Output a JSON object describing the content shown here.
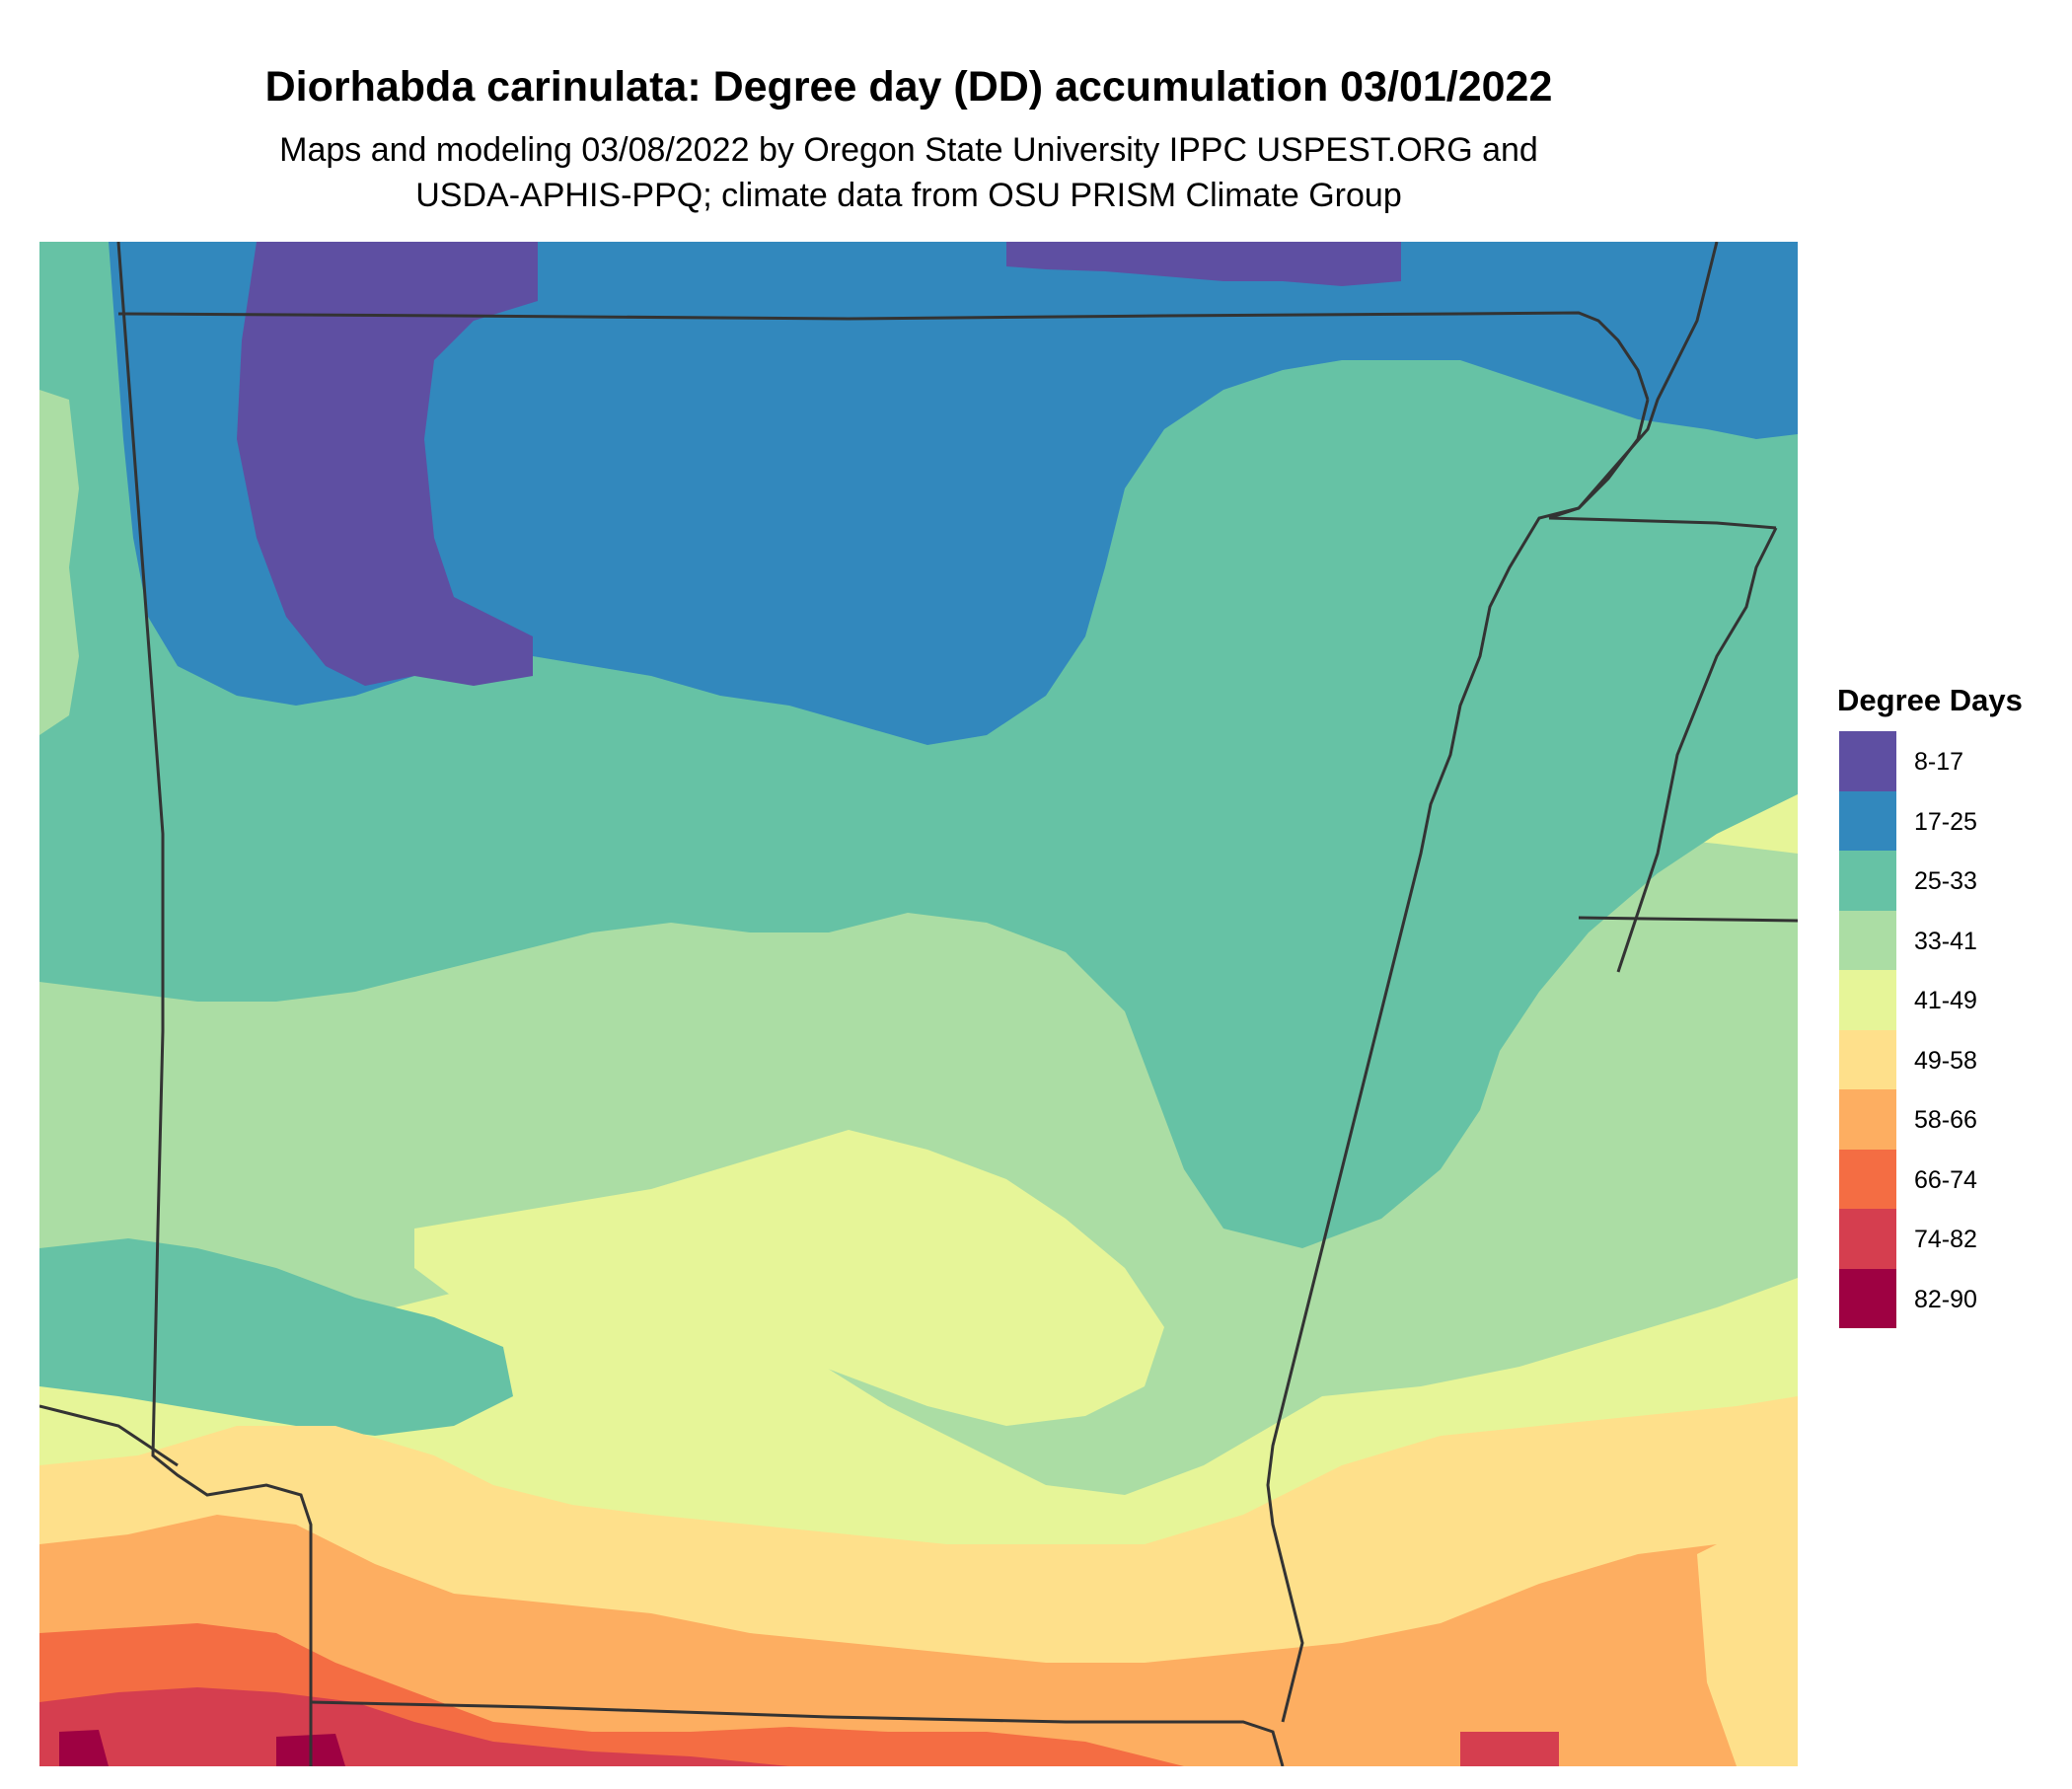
{
  "title": "Diorhabda carinulata: Degree day (DD) accumulation 03/01/2022",
  "subtitle": {
    "line1": "Maps and modeling 03/08/2022 by Oregon State University IPPC USPEST.ORG and",
    "line2": "USDA-APHIS-PPQ; climate data from OSU PRISM Climate Group"
  },
  "legend": {
    "title": "Degree Days",
    "items": [
      {
        "label": "8-17",
        "color": "#5e4fa2"
      },
      {
        "label": "17-25",
        "color": "#3288bd"
      },
      {
        "label": "25-33",
        "color": "#66c2a5"
      },
      {
        "label": "33-41",
        "color": "#abdda4"
      },
      {
        "label": "41-49",
        "color": "#e6f598"
      },
      {
        "label": "49-58",
        "color": "#fee08b"
      },
      {
        "label": "58-66",
        "color": "#fdae61"
      },
      {
        "label": "66-74",
        "color": "#f46d43"
      },
      {
        "label": "74-82",
        "color": "#d53e4f"
      },
      {
        "label": "82-90",
        "color": "#9e0142"
      }
    ]
  },
  "map": {
    "boundary_color": "#333333"
  }
}
